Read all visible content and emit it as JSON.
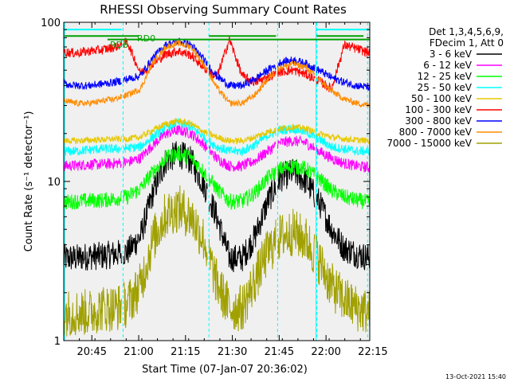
{
  "colors": {
    "background": "#ffffff",
    "plot_background": "#f0f0f0",
    "axis": "#000000",
    "flag_line": "#00a000",
    "eclipse_marker": "#00ffff",
    "series": {
      "3 - 6 keV": "#000000",
      "6 - 12 keV": "#ff00ff",
      "12 - 25 keV": "#00ff00",
      "25 - 50 keV": "#00ffff",
      "50 - 100 keV": "#e6c800",
      "100 - 300 keV": "#ff0000",
      "300 - 800 keV": "#0000ff",
      "800 - 7000 keV": "#ff8c00",
      "7000 - 15000 keV": "#a0a000"
    }
  },
  "chart_data": {
    "type": "line",
    "title": "RHESSI Observing Summary Count Rates",
    "xlabel": "Start Time (07-Jan-07 20:36:02)",
    "ylabel": "Count Rate (s⁻¹ detector⁻¹)",
    "yscale": "log",
    "ylim": [
      1,
      100
    ],
    "xlim_minutes_after_2036": [
      0,
      98
    ],
    "x_tick_labels": [
      "20:45",
      "21:00",
      "21:15",
      "21:30",
      "21:45",
      "22:00",
      "22:15"
    ],
    "x_tick_minutes": [
      9,
      24,
      39,
      54,
      69,
      84,
      99
    ],
    "y_tick_labels": [
      "1",
      "10",
      "100"
    ],
    "timestamp": "13-Oct-2021 15:40",
    "legend": {
      "placement": "right",
      "header": [
        "Det 1,3,4,5,6,9,",
        "FDecim 1, Att 0"
      ],
      "entries": [
        "3 - 6 keV",
        "6 - 12 keV",
        "12 - 25 keV",
        "25 - 50 keV",
        "50 - 100 keV",
        "100 - 300 keV",
        "300 - 800 keV",
        "800 - 7000 keV",
        "7000 - 15000 keV"
      ]
    },
    "flags": {
      "labels": [
        "RD0",
        "RD6"
      ],
      "rd_line_level": 82,
      "saa_line_level": 78,
      "eclipse_cyan_level": 90
    },
    "orbit_segments_minutes": [
      [
        0,
        18.5
      ],
      [
        19,
        46
      ],
      [
        46.5,
        68
      ],
      [
        68.5,
        80.5
      ],
      [
        81,
        98
      ]
    ],
    "series": [
      {
        "name": "3 - 6 keV",
        "values": [
          3.3,
          3.3,
          3.4,
          3.4,
          3.5,
          3.6,
          4.5,
          8.5,
          13.5,
          15,
          13.5,
          9.5,
          6,
          3.3,
          3.3,
          4.5,
          7.5,
          10.5,
          11.5,
          10,
          7.5,
          5,
          3.8,
          3.5,
          3.3
        ]
      },
      {
        "name": "6 - 12 keV",
        "values": [
          12.5,
          12.6,
          12.8,
          12.8,
          13,
          13.2,
          14,
          17,
          20,
          21,
          20,
          17,
          14,
          12.5,
          12.5,
          13.5,
          15.5,
          17.5,
          18,
          17.5,
          15.5,
          14,
          13,
          12.5,
          12.2
        ]
      },
      {
        "name": "12 - 25 keV",
        "values": [
          7.4,
          7.5,
          7.6,
          7.6,
          7.8,
          8,
          9,
          11.5,
          14,
          15,
          14,
          11.5,
          9,
          7.5,
          7.5,
          8.5,
          10.5,
          12,
          12.5,
          12,
          10.5,
          8.8,
          8,
          7.6,
          7.4
        ]
      },
      {
        "name": "25 - 50 keV",
        "values": [
          15.5,
          15.5,
          15.8,
          16,
          16,
          16.2,
          16.5,
          19,
          22,
          23.5,
          22,
          19,
          16.5,
          15.5,
          15.5,
          17,
          19.5,
          21,
          21.5,
          20.5,
          18.5,
          16.5,
          16,
          15.5,
          15.5
        ]
      },
      {
        "name": "50 - 100 keV",
        "values": [
          18,
          18,
          18.2,
          18.3,
          18.5,
          18.5,
          19,
          21,
          23,
          24,
          23,
          20.5,
          19,
          18,
          18,
          19,
          20.5,
          21.5,
          22,
          21.5,
          20,
          19,
          18.5,
          18.2,
          18
        ]
      },
      {
        "name": "100 - 300 keV",
        "values": [
          65,
          64,
          66,
          67,
          70,
          75,
          48,
          55,
          63,
          66,
          62,
          52,
          45,
          78,
          46,
          42,
          45,
          49,
          50,
          47,
          43,
          38,
          72,
          68,
          64
        ]
      },
      {
        "name": "300 - 800 keV",
        "values": [
          41,
          40,
          40,
          41,
          42,
          44,
          46,
          60,
          72,
          76,
          72,
          58,
          46,
          40,
          40,
          44,
          50,
          56,
          58,
          55,
          50,
          45,
          42,
          40,
          39
        ]
      },
      {
        "name": "800 - 7000 keV",
        "values": [
          32,
          31,
          31,
          32,
          33,
          35,
          38,
          56,
          70,
          74,
          70,
          54,
          39,
          31,
          31,
          35,
          44,
          52,
          55,
          52,
          44,
          37,
          33,
          31,
          30
        ]
      },
      {
        "name": "7000 - 15000 keV",
        "values": [
          1.5,
          1.5,
          1.5,
          1.6,
          1.6,
          1.7,
          2.2,
          4.3,
          6.2,
          6.8,
          6,
          4.3,
          2.3,
          1.6,
          1.6,
          2.4,
          3.6,
          4.5,
          4.8,
          4.3,
          3.2,
          2.2,
          1.8,
          1.6,
          1.5
        ]
      }
    ]
  }
}
